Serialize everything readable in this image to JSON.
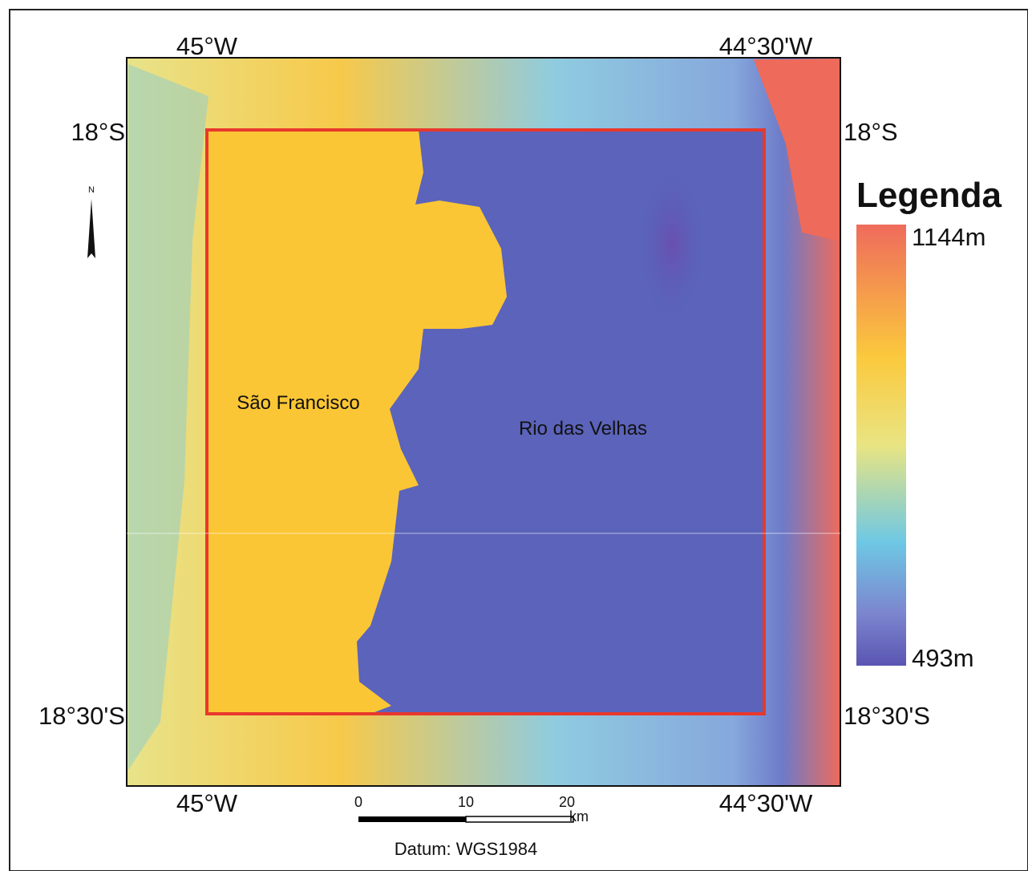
{
  "map": {
    "top_labels": [
      "45°W",
      "44°30'W"
    ],
    "bottom_labels": [
      "45°W",
      "44°30'W"
    ],
    "left_labels": [
      "18°S",
      "18°30'S"
    ],
    "right_labels": [
      "18°S",
      "18°30'S"
    ],
    "north": "N",
    "regions": [
      "São Francisco",
      "Rio das Velhas"
    ]
  },
  "legend": {
    "title": "Legenda",
    "max": "1144m",
    "min": "493m"
  },
  "scale_bar": {
    "ticks": [
      "0",
      "10",
      "20"
    ],
    "unit": "km"
  },
  "datum": "Datum: WGS1984"
}
